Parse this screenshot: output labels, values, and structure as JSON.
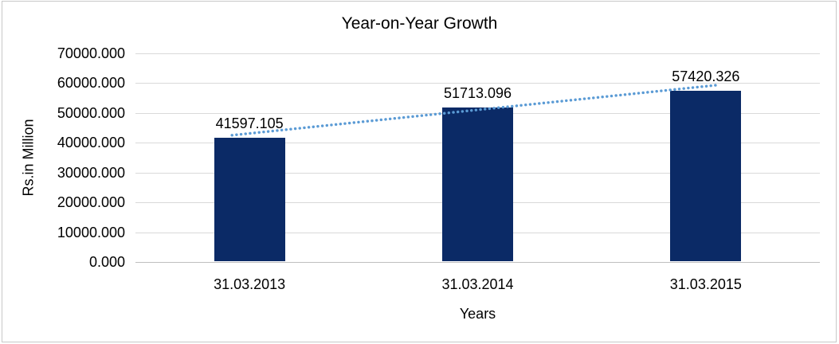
{
  "chart_data": {
    "type": "bar",
    "title": "Year-on-Year Growth",
    "categories": [
      "31.03.2013",
      "31.03.2014",
      "31.03.2015"
    ],
    "values": [
      41597.105,
      51713.096,
      57420.326
    ],
    "data_labels": [
      "41597.105",
      "51713.096",
      "57420.326"
    ],
    "xlabel": "Years",
    "ylabel": "Rs.in Million",
    "ylim": [
      0,
      70000
    ],
    "ytick_step": 10000,
    "ytick_labels": [
      "70000.000",
      "60000.000",
      "50000.000",
      "40000.000",
      "30000.000",
      "20000.000",
      "10000.000",
      "0.000"
    ],
    "grid": true,
    "legend": "none",
    "trendline": {
      "type": "linear",
      "style": "dotted"
    },
    "colors": {
      "bar": "#0B2A66",
      "trendline": "#5B9BD5",
      "gridline": "#D9D9D9",
      "axis_line": "#BFBFBF",
      "text": "#000000",
      "frame_border": "#C8C8C8",
      "background": "#FFFFFF"
    }
  }
}
